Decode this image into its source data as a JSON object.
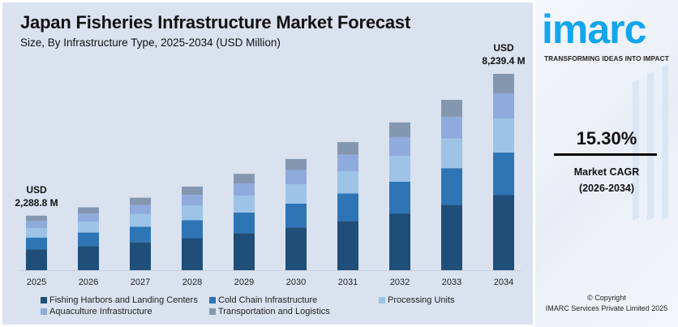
{
  "header": {
    "title": "Japan Fisheries Infrastructure Market Forecast",
    "subtitle": "Size, By Infrastructure Type, 2025-2034 (USD Million)"
  },
  "chart_data": {
    "type": "bar",
    "stacked": true,
    "title": "Japan Fisheries Infrastructure Market Forecast",
    "subtitle": "Size, By Infrastructure Type, 2025-2034 (USD Million)",
    "categories": [
      "2025",
      "2026",
      "2027",
      "2028",
      "2029",
      "2030",
      "2031",
      "2032",
      "2033",
      "2034"
    ],
    "series": [
      {
        "name": "Fishing Harbors and Landing Centers",
        "color": "#1f4e79",
        "values": [
          878.8,
          1013.4,
          1168.5,
          1347.1,
          1553.3,
          1791.0,
          2064.8,
          2380.8,
          2744.8,
          3163.9
        ]
      },
      {
        "name": "Cold Chain Infrastructure",
        "color": "#2e75b6",
        "values": [
          492.1,
          567.4,
          654.2,
          754.2,
          869.7,
          1002.8,
          1156.1,
          1333.0,
          1536.8,
          1771.5
        ]
      },
      {
        "name": "Processing Units",
        "color": "#9dc3e6",
        "values": [
          398.3,
          459.2,
          529.5,
          610.4,
          703.8,
          811.5,
          935.6,
          1078.8,
          1243.8,
          1433.7
        ]
      },
      {
        "name": "Aquaculture Infrastructure",
        "color": "#8faadc",
        "values": [
          293.0,
          337.8,
          389.5,
          449.0,
          517.8,
          597.0,
          688.3,
          793.6,
          914.9,
          1054.6
        ]
      },
      {
        "name": "Transportation and Logistics",
        "color": "#8497b0",
        "values": [
          226.6,
          261.3,
          301.3,
          347.3,
          400.5,
          461.7,
          532.3,
          613.8,
          707.7,
          815.7
        ]
      }
    ],
    "annotations": [
      {
        "category": "2025",
        "line1": "USD",
        "line2": "2,288.8 M"
      },
      {
        "category": "2034",
        "line1": "USD",
        "line2": "8,239.4 M"
      }
    ],
    "ylim": [
      0,
      8239.4
    ],
    "grid": false,
    "legend_position": "bottom"
  },
  "side": {
    "logo": "imarc",
    "tagline": "TRANSFORMING IDEAS INTO IMPACT",
    "cagr_value": "15.30%",
    "cagr_label": "Market CAGR",
    "cagr_period": "(2026-2034)",
    "copyright": "© Copyright",
    "company": "IMARC Services Private Limited 2025"
  }
}
